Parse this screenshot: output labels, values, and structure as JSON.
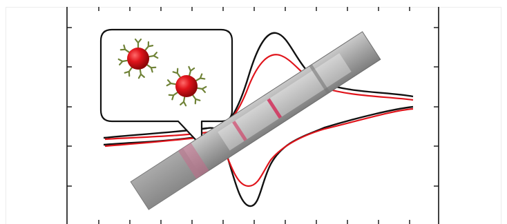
{
  "figure": {
    "description_alt": "",
    "curves": [
      {
        "name": "",
        "color": "#111111"
      },
      {
        "name": "",
        "color": "#e0141b"
      }
    ],
    "nanoparticle": {
      "core_color": "#e0141b",
      "antibody_color": "#7a8c3e"
    },
    "strip": {
      "body_color": "#9a9a9a",
      "line_color": "#d22f5a"
    }
  }
}
